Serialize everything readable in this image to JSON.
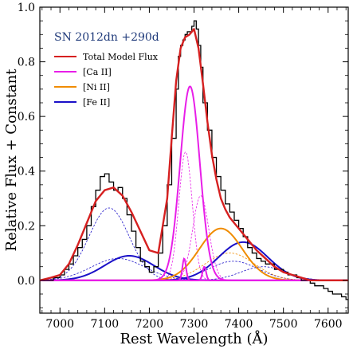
{
  "chart_data": {
    "type": "line",
    "title": "",
    "annotation": "SN 2012dn +290d",
    "xlabel": "Rest Wavelength (Å)",
    "ylabel": "Relative Flux + Constant",
    "xlim": [
      6955,
      7645
    ],
    "ylim": [
      -0.12,
      1.0
    ],
    "xticks": [
      7000,
      7100,
      7200,
      7300,
      7400,
      7500,
      7600
    ],
    "xtick_labels": [
      "7000",
      "7100",
      "7200",
      "7300",
      "7400",
      "7500",
      "7600"
    ],
    "yticks": [
      0.0,
      0.2,
      0.4,
      0.6,
      0.8,
      1.0
    ],
    "ytick_labels": [
      "0.0",
      "0.2",
      "0.4",
      "0.6",
      "0.8",
      "1.0"
    ],
    "grid": false,
    "legend_position": "upper-left",
    "legend": [
      {
        "label": "Total Model Flux",
        "color": "#d62020"
      },
      {
        "label": "[Ca II]",
        "color": "#e81ee8"
      },
      {
        "label": "[Ni II]",
        "color": "#f08c00"
      },
      {
        "label": "[Fe II]",
        "color": "#1a10c8"
      }
    ],
    "colors": {
      "observed": "#000000",
      "total": "#d62020",
      "ca": "#e81ee8",
      "ni": "#f08c00",
      "fe": "#1a10c8",
      "annotation": "#1f3a7a"
    },
    "observed": {
      "x": [
        6955,
        6970,
        6985,
        7000,
        7010,
        7020,
        7030,
        7040,
        7050,
        7060,
        7070,
        7080,
        7090,
        7100,
        7110,
        7120,
        7130,
        7140,
        7150,
        7160,
        7170,
        7180,
        7190,
        7200,
        7210,
        7220,
        7230,
        7240,
        7250,
        7260,
        7265,
        7270,
        7275,
        7280,
        7285,
        7290,
        7295,
        7300,
        7305,
        7310,
        7315,
        7320,
        7330,
        7340,
        7350,
        7360,
        7370,
        7380,
        7390,
        7400,
        7410,
        7420,
        7430,
        7440,
        7450,
        7460,
        7470,
        7480,
        7490,
        7500,
        7510,
        7520,
        7530,
        7540,
        7550,
        7560,
        7570,
        7580,
        7590,
        7600,
        7610,
        7620,
        7630,
        7640,
        7645
      ],
      "y": [
        0.0,
        0.0,
        0.01,
        0.02,
        0.04,
        0.06,
        0.09,
        0.12,
        0.15,
        0.2,
        0.27,
        0.33,
        0.38,
        0.39,
        0.36,
        0.33,
        0.34,
        0.3,
        0.24,
        0.18,
        0.12,
        0.07,
        0.05,
        0.03,
        0.05,
        0.1,
        0.2,
        0.35,
        0.52,
        0.7,
        0.82,
        0.86,
        0.88,
        0.9,
        0.91,
        0.91,
        0.93,
        0.95,
        0.92,
        0.86,
        0.78,
        0.65,
        0.55,
        0.45,
        0.38,
        0.33,
        0.28,
        0.25,
        0.22,
        0.19,
        0.16,
        0.12,
        0.1,
        0.08,
        0.07,
        0.06,
        0.06,
        0.04,
        0.04,
        0.03,
        0.02,
        0.02,
        0.01,
        0.0,
        0.0,
        -0.01,
        -0.02,
        -0.02,
        -0.03,
        -0.04,
        -0.05,
        -0.05,
        -0.06,
        -0.07,
        -0.07
      ]
    },
    "total_model": {
      "x": [
        6955,
        6980,
        7000,
        7020,
        7040,
        7060,
        7080,
        7100,
        7120,
        7140,
        7160,
        7180,
        7200,
        7220,
        7240,
        7250,
        7260,
        7270,
        7280,
        7290,
        7300,
        7310,
        7320,
        7330,
        7340,
        7350,
        7360,
        7370,
        7380,
        7400,
        7420,
        7440,
        7460,
        7480,
        7500,
        7520,
        7540,
        7560,
        7580,
        7600,
        7620,
        7645
      ],
      "y": [
        0.0,
        0.01,
        0.02,
        0.06,
        0.13,
        0.21,
        0.29,
        0.33,
        0.34,
        0.31,
        0.25,
        0.18,
        0.11,
        0.1,
        0.3,
        0.52,
        0.73,
        0.85,
        0.89,
        0.9,
        0.92,
        0.85,
        0.72,
        0.58,
        0.46,
        0.37,
        0.3,
        0.26,
        0.23,
        0.19,
        0.15,
        0.11,
        0.08,
        0.05,
        0.03,
        0.02,
        0.01,
        0.0,
        0.0,
        0.0,
        0.0,
        0.0
      ]
    },
    "components": {
      "ca_strong": [
        {
          "center": 7291,
          "amp": 0.71,
          "sigma": 22,
          "style": "solid"
        },
        {
          "center": 7278,
          "amp": 0.08,
          "sigma": 4,
          "style": "solid"
        },
        {
          "center": 7323,
          "amp": 0.05,
          "sigma": 4,
          "style": "solid"
        }
      ],
      "ca_weak": [
        {
          "center": 7281,
          "amp": 0.47,
          "sigma": 15,
          "style": "dashed"
        },
        {
          "center": 7315,
          "amp": 0.31,
          "sigma": 18,
          "style": "dashed"
        }
      ],
      "ni_strong": [
        {
          "center": 7360,
          "amp": 0.19,
          "sigma": 48,
          "style": "solid"
        }
      ],
      "ni_weak": [
        {
          "center": 7380,
          "amp": 0.1,
          "sigma": 55,
          "style": "dashed"
        }
      ],
      "fe_strong": [
        {
          "center": 7155,
          "amp": 0.09,
          "sigma": 55,
          "style": "solid"
        },
        {
          "center": 7410,
          "amp": 0.14,
          "sigma": 55,
          "style": "solid"
        }
      ],
      "fe_weak": [
        {
          "center": 7110,
          "amp": 0.265,
          "sigma": 45,
          "style": "dashed"
        },
        {
          "center": 7130,
          "amp": 0.08,
          "sigma": 60,
          "style": "dashed"
        },
        {
          "center": 7388,
          "amp": 0.07,
          "sigma": 55,
          "style": "dashed"
        },
        {
          "center": 7455,
          "amp": 0.05,
          "sigma": 50,
          "style": "dashed"
        }
      ]
    }
  }
}
